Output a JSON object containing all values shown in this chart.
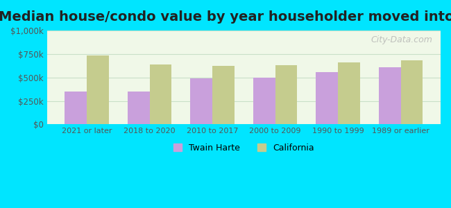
{
  "title": "Median house/condo value by year householder moved into unit",
  "categories": [
    "2021 or later",
    "2018 to 2020",
    "2010 to 2017",
    "2000 to 2009",
    "1990 to 1999",
    "1989 or earlier"
  ],
  "twain_harte": [
    350000,
    350000,
    490000,
    500000,
    555000,
    610000
  ],
  "california": [
    730000,
    640000,
    620000,
    630000,
    660000,
    680000
  ],
  "twain_harte_color": "#c9a0dc",
  "california_color": "#c5cc8e",
  "background_outer": "#00e5ff",
  "background_inner": "#f0f8e8",
  "ylim": [
    0,
    1000000
  ],
  "yticks": [
    0,
    250000,
    500000,
    750000,
    1000000
  ],
  "ytick_labels": [
    "$0",
    "$250k",
    "$500k",
    "$750k",
    "$1,000k"
  ],
  "watermark": "City-Data.com",
  "legend_twain": "Twain Harte",
  "legend_california": "California",
  "title_fontsize": 14,
  "bar_width": 0.35,
  "grid_color": "#c8e0c8"
}
